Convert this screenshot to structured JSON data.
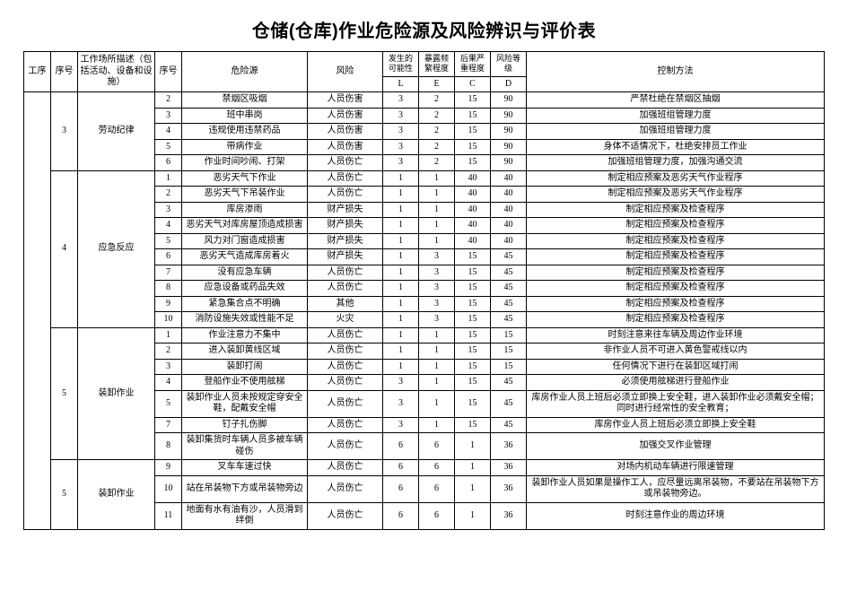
{
  "title": "仓储(仓库)作业危险源及风险辨识与评价表",
  "header": {
    "proc": "工序",
    "seq1": "序号",
    "loc": "工作场所描述（包括活动、设备和设施）",
    "seq2": "序号",
    "hazard": "危险源",
    "risk": "风险",
    "L": "发生的可能性",
    "E": "暴露频繁程度",
    "C": "后果严重程度",
    "D": "风险等级",
    "Ls": "L",
    "Es": "E",
    "Cs": "C",
    "Ds": "D",
    "ctrl": "控制方法"
  },
  "groups": [
    {
      "seq1": "3",
      "loc": "劳动纪律",
      "rows": [
        {
          "n": "2",
          "haz": "禁烟区吸烟",
          "risk": "人员伤害",
          "L": "3",
          "E": "2",
          "C": "15",
          "D": "90",
          "ctrl": "严禁杜绝在禁烟区抽烟"
        },
        {
          "n": "3",
          "haz": "班中串岗",
          "risk": "人员伤害",
          "L": "3",
          "E": "2",
          "C": "15",
          "D": "90",
          "ctrl": "加强班组管理力度"
        },
        {
          "n": "4",
          "haz": "违规使用违禁药品",
          "risk": "人员伤害",
          "L": "3",
          "E": "2",
          "C": "15",
          "D": "90",
          "ctrl": "加强班组管理力度"
        },
        {
          "n": "5",
          "haz": "带病作业",
          "risk": "人员伤害",
          "L": "3",
          "E": "2",
          "C": "15",
          "D": "90",
          "ctrl": "身体不适情况下，杜绝安排员工作业"
        },
        {
          "n": "6",
          "haz": "作业时间吵闹、打架",
          "risk": "人员伤亡",
          "L": "3",
          "E": "2",
          "C": "15",
          "D": "90",
          "ctrl": "加强班组管理力度，加强沟通交流"
        }
      ]
    },
    {
      "seq1": "4",
      "loc": "应急反应",
      "rows": [
        {
          "n": "1",
          "haz": "恶劣天气下作业",
          "risk": "人员伤亡",
          "L": "1",
          "E": "1",
          "C": "40",
          "D": "40",
          "ctrl": "制定相应预案及恶劣天气作业程序"
        },
        {
          "n": "2",
          "haz": "恶劣天气下吊装作业",
          "risk": "人员伤亡",
          "L": "1",
          "E": "1",
          "C": "40",
          "D": "40",
          "ctrl": "制定相应预案及恶劣天气作业程序"
        },
        {
          "n": "3",
          "haz": "库房渗雨",
          "risk": "财产损失",
          "L": "1",
          "E": "1",
          "C": "40",
          "D": "40",
          "ctrl": "制定相应预案及检查程序"
        },
        {
          "n": "4",
          "haz": "恶劣天气对库房屋顶造成损害",
          "risk": "财产损失",
          "L": "1",
          "E": "1",
          "C": "40",
          "D": "40",
          "ctrl": "制定相应预案及检查程序"
        },
        {
          "n": "5",
          "haz": "风力对门窗造成损害",
          "risk": "财产损失",
          "L": "1",
          "E": "1",
          "C": "40",
          "D": "40",
          "ctrl": "制定相应预案及检查程序"
        },
        {
          "n": "6",
          "haz": "恶劣天气造成库房着火",
          "risk": "财产损失",
          "L": "1",
          "E": "3",
          "C": "15",
          "D": "45",
          "ctrl": "制定相应预案及检查程序"
        },
        {
          "n": "7",
          "haz": "没有应急车辆",
          "risk": "人员伤亡",
          "L": "1",
          "E": "3",
          "C": "15",
          "D": "45",
          "ctrl": "制定相应预案及检查程序"
        },
        {
          "n": "8",
          "haz": "应急设备或药品失效",
          "risk": "人员伤亡",
          "L": "1",
          "E": "3",
          "C": "15",
          "D": "45",
          "ctrl": "制定相应预案及检查程序"
        },
        {
          "n": "9",
          "haz": "紧急集合点不明确",
          "risk": "其他",
          "L": "1",
          "E": "3",
          "C": "15",
          "D": "45",
          "ctrl": "制定相应预案及检查程序"
        },
        {
          "n": "10",
          "haz": "消防设施失效或性能不足",
          "risk": "火灾",
          "L": "1",
          "E": "3",
          "C": "15",
          "D": "45",
          "ctrl": "制定相应预案及检查程序"
        }
      ]
    },
    {
      "seq1": "5",
      "loc": "装卸作业",
      "rows": [
        {
          "n": "1",
          "haz": "作业注意力不集中",
          "risk": "人员伤亡",
          "L": "1",
          "E": "1",
          "C": "15",
          "D": "15",
          "ctrl": "时刻注意来往车辆及周边作业环境"
        },
        {
          "n": "2",
          "haz": "进入装卸黄线区域",
          "risk": "人员伤亡",
          "L": "1",
          "E": "1",
          "C": "15",
          "D": "15",
          "ctrl": "非作业人员不可进入黄色警戒线以内"
        },
        {
          "n": "3",
          "haz": "装卸打闹",
          "risk": "人员伤亡",
          "L": "1",
          "E": "1",
          "C": "15",
          "D": "15",
          "ctrl": "任何情况下进行在装卸区域打闹"
        },
        {
          "n": "4",
          "haz": "登船作业不使用舷梯",
          "risk": "人员伤亡",
          "L": "3",
          "E": "1",
          "C": "15",
          "D": "45",
          "ctrl": "必须使用舷梯进行登船作业"
        },
        {
          "n": "5",
          "haz": "装卸作业人员未按规定穿安全鞋，配戴安全帽",
          "risk": "人员伤亡",
          "L": "3",
          "E": "1",
          "C": "15",
          "D": "45",
          "ctrl": "库房作业人员上班后必须立即换上安全鞋，进入装卸作业必须戴安全帽；同时进行经常性的安全教育；"
        },
        {
          "n": "7",
          "haz": "钉子扎伤脚",
          "risk": "人员伤亡",
          "L": "3",
          "E": "1",
          "C": "15",
          "D": "45",
          "ctrl": "库房作业人员上班后必须立即换上安全鞋"
        },
        {
          "n": "8",
          "haz": "装卸集货时车辆人员多被车辆碰伤",
          "risk": "人员伤亡",
          "L": "6",
          "E": "6",
          "C": "1",
          "D": "36",
          "ctrl": "加强交叉作业管理"
        }
      ]
    },
    {
      "seq1": "5",
      "loc": "装卸作业",
      "rows": [
        {
          "n": "9",
          "haz": "叉车车速过快",
          "risk": "人员伤亡",
          "L": "6",
          "E": "6",
          "C": "1",
          "D": "36",
          "ctrl": "对场内机动车辆进行限速管理"
        },
        {
          "n": "10",
          "haz": "站在吊装物下方或吊装物旁边",
          "risk": "人员伤亡",
          "L": "6",
          "E": "6",
          "C": "1",
          "D": "36",
          "ctrl": "装卸作业人员如果是操作工人，应尽量远离吊装物，不要站在吊装物下方或吊装物旁边。"
        },
        {
          "n": "11",
          "haz": "地面有水有油有沙，人员滑到绊倒",
          "risk": "人员伤亡",
          "L": "6",
          "E": "6",
          "C": "1",
          "D": "36",
          "ctrl": "时刻注意作业的周边环境"
        }
      ]
    }
  ]
}
